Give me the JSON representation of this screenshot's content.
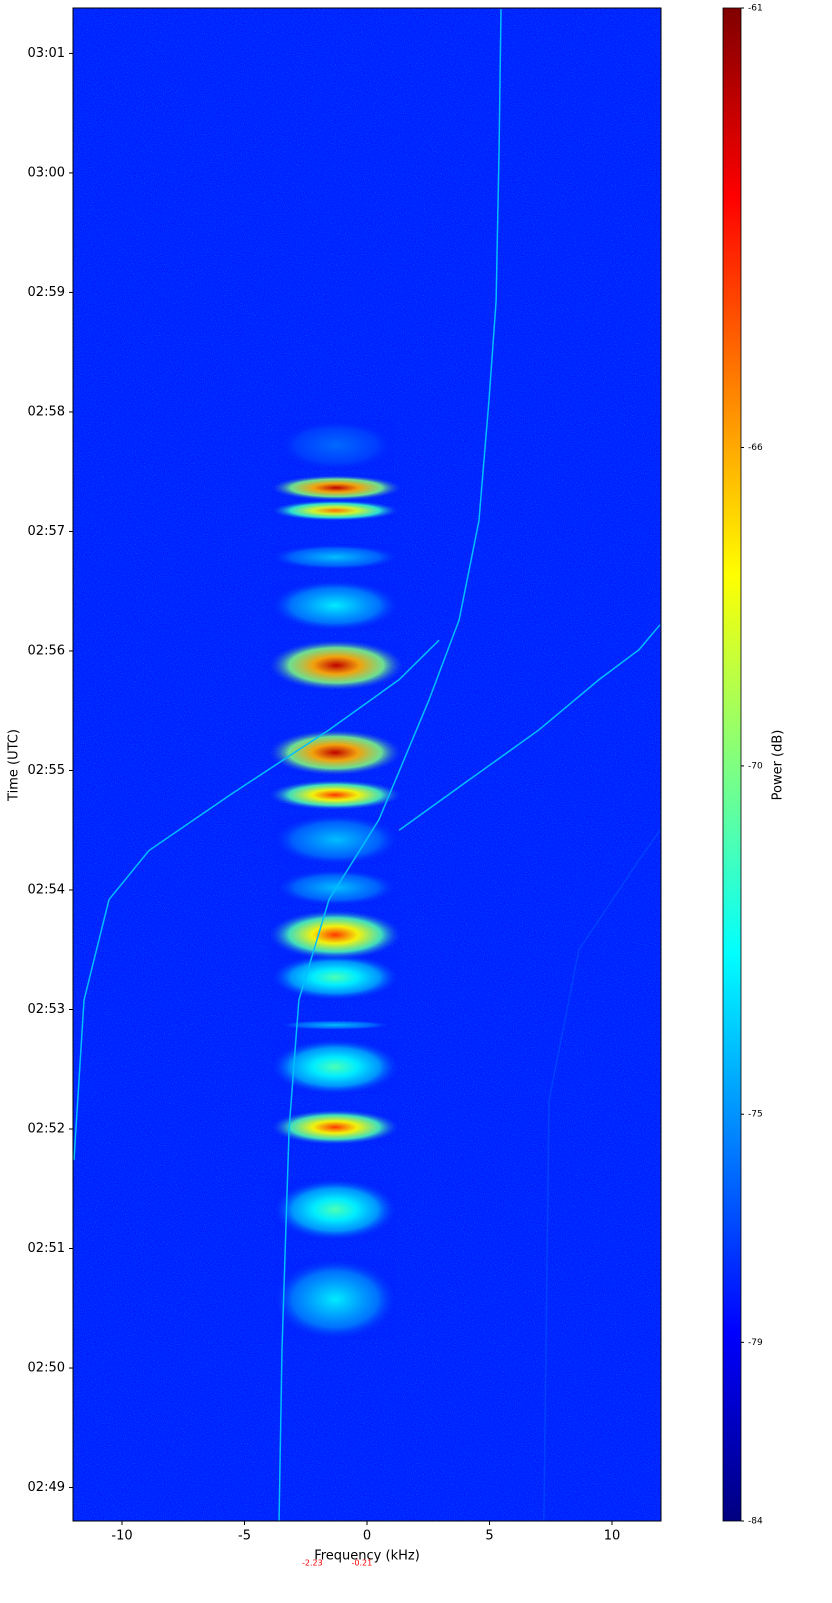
{
  "chart_data": {
    "type": "spectrogram",
    "xlabel": "Frequency (kHz)",
    "ylabel": "Time (UTC)",
    "xlim": [
      -12,
      12
    ],
    "xticks": [
      -10,
      -5,
      0,
      5,
      10
    ],
    "ylim": [
      168.72,
      181.38
    ],
    "yticks": [
      {
        "value": 169,
        "label": "02:49"
      },
      {
        "value": 170,
        "label": "02:50"
      },
      {
        "value": 171,
        "label": "02:51"
      },
      {
        "value": 172,
        "label": "02:52"
      },
      {
        "value": 173,
        "label": "02:53"
      },
      {
        "value": 174,
        "label": "02:54"
      },
      {
        "value": 175,
        "label": "02:55"
      },
      {
        "value": 176,
        "label": "02:56"
      },
      {
        "value": 177,
        "label": "02:57"
      },
      {
        "value": 178,
        "label": "02:58"
      },
      {
        "value": 179,
        "label": "02:59"
      },
      {
        "value": 180,
        "label": "03:00"
      },
      {
        "value": 181,
        "label": "03:01"
      }
    ],
    "colorbar": {
      "label": "Power (dB)",
      "clim": [
        -84,
        -61
      ],
      "ticks": [
        -84,
        -79,
        -75,
        -70,
        -66,
        -61
      ],
      "gamma": 1.4,
      "colormap": "jet"
    },
    "background_power": -78,
    "bursts": [
      {
        "t0": 170.24,
        "t1": 170.91,
        "f0": -3.8,
        "f1": 1.2,
        "peak": -73
      },
      {
        "t0": 171.07,
        "t1": 171.58,
        "f0": -3.8,
        "f1": 1.2,
        "peak": -71
      },
      {
        "t0": 171.87,
        "t1": 172.16,
        "f0": -3.9,
        "f1": 1.3,
        "peak": -64
      },
      {
        "t0": 172.29,
        "t1": 172.75,
        "f0": -3.9,
        "f1": 1.3,
        "peak": -71
      },
      {
        "t0": 172.83,
        "t1": 172.91,
        "f0": -3.6,
        "f1": 1.0,
        "peak": -74
      },
      {
        "t0": 173.08,
        "t1": 173.46,
        "f0": -3.9,
        "f1": 1.3,
        "peak": -71
      },
      {
        "t0": 173.42,
        "t1": 173.83,
        "f0": -4.0,
        "f1": 1.4,
        "peak": -64
      },
      {
        "t0": 173.87,
        "t1": 174.17,
        "f0": -3.7,
        "f1": 1.2,
        "peak": -74
      },
      {
        "t0": 174.21,
        "t1": 174.63,
        "f0": -3.8,
        "f1": 1.3,
        "peak": -74
      },
      {
        "t0": 174.67,
        "t1": 174.92,
        "f0": -4.0,
        "f1": 1.4,
        "peak": -64
      },
      {
        "t0": 174.96,
        "t1": 175.34,
        "f0": -4.0,
        "f1": 1.4,
        "peak": -62
      },
      {
        "t0": 175.67,
        "t1": 176.09,
        "f0": -4.0,
        "f1": 1.5,
        "peak": -62
      },
      {
        "t0": 176.17,
        "t1": 176.59,
        "f0": -3.9,
        "f1": 1.3,
        "peak": -73
      },
      {
        "t0": 176.68,
        "t1": 176.89,
        "f0": -3.9,
        "f1": 1.3,
        "peak": -74
      },
      {
        "t0": 177.09,
        "t1": 177.26,
        "f0": -3.9,
        "f1": 1.3,
        "peak": -65
      },
      {
        "t0": 177.26,
        "t1": 177.47,
        "f0": -3.9,
        "f1": 1.4,
        "peak": -62
      },
      {
        "t0": 177.51,
        "t1": 177.93,
        "f0": -3.6,
        "f1": 1.1,
        "peak": -76
      }
    ],
    "traces": [
      {
        "x": [
          -3.59,
          -3.47,
          -3.18,
          -2.78,
          -1.55,
          0.49,
          2.53,
          3.76,
          4.57,
          4.98,
          5.27,
          5.39,
          5.47
        ],
        "y": [
          168.72,
          170.15,
          172.0,
          173.08,
          173.92,
          174.59,
          175.59,
          176.26,
          177.09,
          178.1,
          178.93,
          180.19,
          181.37
        ],
        "power": -74
      },
      {
        "x": [
          -11.96,
          -11.55,
          -10.53,
          -8.9,
          -5.63,
          -1.55,
          1.31,
          2.94
        ],
        "y": [
          171.74,
          173.08,
          173.92,
          174.33,
          174.79,
          175.34,
          175.76,
          176.09
        ],
        "power": -74
      },
      {
        "x": [
          1.31,
          4.16,
          7.02,
          9.47,
          11.1,
          11.96
        ],
        "y": [
          174.5,
          174.92,
          175.34,
          175.76,
          176.01,
          176.22
        ],
        "power": -74
      },
      {
        "x": [
          7.22,
          7.43,
          8.65,
          11.1,
          11.96
        ],
        "y": [
          168.72,
          172.24,
          173.5,
          174.25,
          174.5
        ],
        "power": -77
      }
    ],
    "freq_markers": {
      "values": [
        -2.23,
        -0.21
      ],
      "color": "#ff0000"
    }
  }
}
